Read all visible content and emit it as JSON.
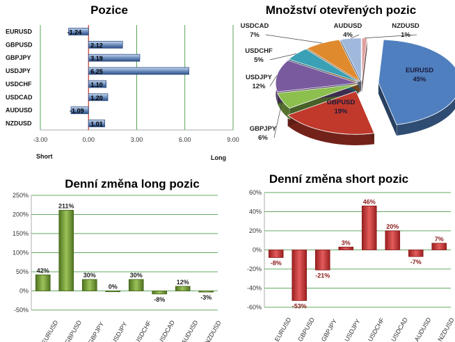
{
  "chart_data": [
    {
      "type": "bar",
      "orientation": "horizontal",
      "title": "Pozice",
      "categories": [
        "EURUSD",
        "GBPUSD",
        "GBPJPY",
        "USDJPY",
        "USDCHF",
        "USDCAD",
        "AUDUSD",
        "NZDUSD"
      ],
      "values": [
        -1.24,
        2.12,
        3.19,
        6.25,
        1.1,
        1.2,
        -1.09,
        1.01
      ],
      "data_labels": [
        "-1.24",
        "2.12",
        "3.19",
        "6.25",
        "1.10",
        "1.20",
        "-1.09",
        "1.01"
      ],
      "xlim": [
        -3,
        9
      ],
      "xticks": [
        "-3.00",
        "0.00",
        "3.00",
        "6.00",
        "9.00"
      ],
      "xlabel_left": "Short",
      "xlabel_right": "Long",
      "colors": {
        "bar": "#6e8fbf",
        "bar_dark": "#2f4f85",
        "zero_line": "#c0392b",
        "grid": "#2e8b2e"
      }
    },
    {
      "type": "pie",
      "title": "Množství otevřených pozic",
      "slices": [
        {
          "label": "EURUSD",
          "pct": "45%",
          "value": 45,
          "color": "#4f7fbf"
        },
        {
          "label": "GBPUSD",
          "pct": "19%",
          "value": 19,
          "color": "#c0392b"
        },
        {
          "label": "GBPJPY",
          "pct": "6%",
          "value": 6,
          "color": "#8dbf4f"
        },
        {
          "label": "USDJPY",
          "pct": "12%",
          "value": 12,
          "color": "#7a5a9e"
        },
        {
          "label": "USDCHF",
          "pct": "5%",
          "value": 5,
          "color": "#3aa0b5"
        },
        {
          "label": "USDCAD",
          "pct": "7%",
          "value": 7,
          "color": "#e08a2e"
        },
        {
          "label": "AUDUSD",
          "pct": "4%",
          "value": 4,
          "color": "#9fb8db"
        },
        {
          "label": "NZDUSD",
          "pct": "1%",
          "value": 1,
          "color": "#e0a0a0"
        }
      ]
    },
    {
      "type": "bar",
      "title": "Denní změna long pozic",
      "categories": [
        "EURUSD",
        "GBPUSD",
        "GBPJPY",
        "USDJPY",
        "USDCHF",
        "USDCAD",
        "AUDUSD",
        "NZDUSD"
      ],
      "values": [
        42,
        211,
        30,
        0,
        30,
        -8,
        12,
        -3
      ],
      "data_labels": [
        "42%",
        "211%",
        "30%",
        "0%",
        "30%",
        "-8%",
        "12%",
        "-3%"
      ],
      "ylim": [
        -50,
        250
      ],
      "yticks": [
        "-50%",
        "0%",
        "50%",
        "100%",
        "150%",
        "200%",
        "250%"
      ],
      "colors": {
        "bar": "#7da33a",
        "bar_dark": "#3f5f15",
        "grid": "#2e8b2e",
        "label": "#222222"
      }
    },
    {
      "type": "bar",
      "title": "Denní změna short pozic",
      "categories": [
        "EURUSD",
        "GBPUSD",
        "GBPJPY",
        "USDJPY",
        "USDCHF",
        "USDCAD",
        "AUDUSD",
        "NZDUSD"
      ],
      "values": [
        -8,
        -53,
        -21,
        3,
        46,
        20,
        -7,
        7
      ],
      "data_labels": [
        "-8%",
        "-53%",
        "-21%",
        "3%",
        "46%",
        "20%",
        "-7%",
        "7%"
      ],
      "ylim": [
        -60,
        60
      ],
      "yticks": [
        "-60%",
        "-40%",
        "-20%",
        "0%",
        "20%",
        "40%",
        "60%"
      ],
      "colors": {
        "bar": "#d94545",
        "bar_dark": "#8a1b1b",
        "grid": "#2e8b2e",
        "label": "#8a1b1b"
      }
    }
  ]
}
